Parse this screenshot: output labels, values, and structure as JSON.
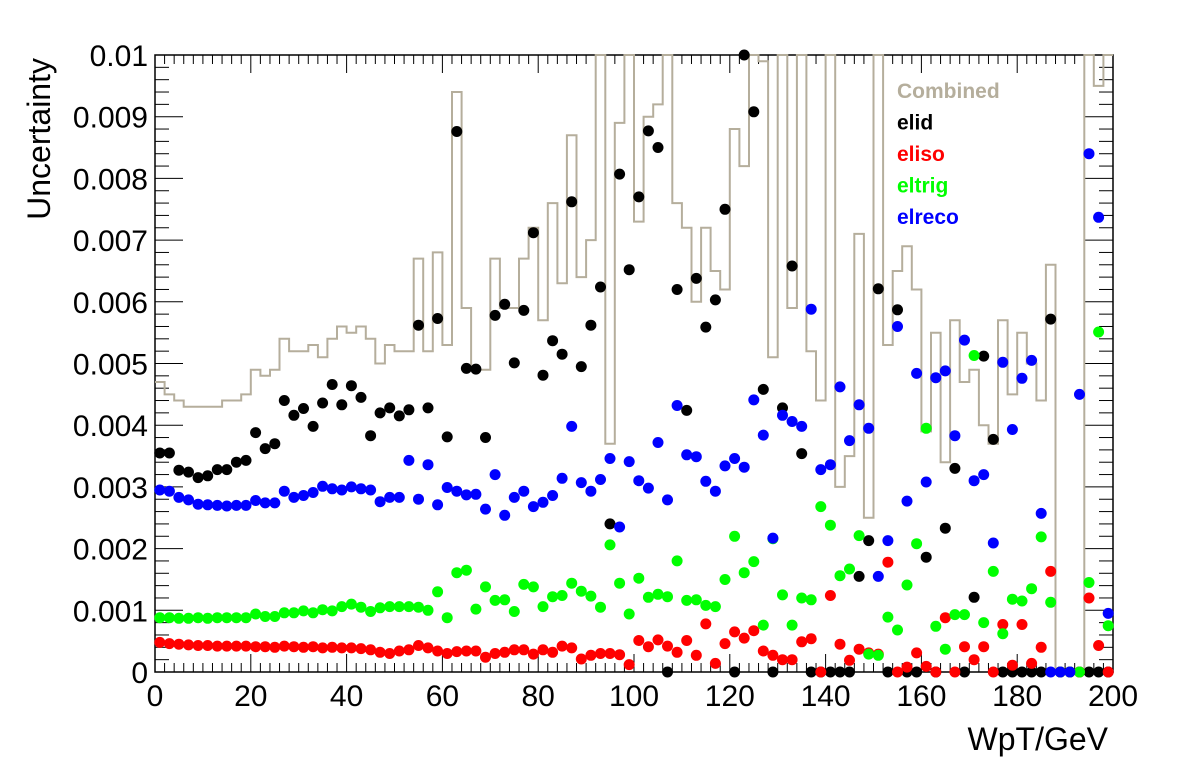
{
  "chart_data": {
    "type": "scatter",
    "xlabel": "WpT/GeV",
    "ylabel": "Uncertainty",
    "xlim": [
      0,
      200
    ],
    "ylim": [
      0,
      0.01
    ],
    "x_ticks": [
      "0",
      "20",
      "40",
      "60",
      "80",
      "100",
      "120",
      "140",
      "160",
      "180",
      "200"
    ],
    "y_ticks": [
      "0",
      "0.001",
      "0.002",
      "0.003",
      "0.004",
      "0.005",
      "0.006",
      "0.007",
      "0.008",
      "0.009",
      "0.01"
    ],
    "legend_position": "top-right",
    "x": [
      1,
      3,
      5,
      7,
      9,
      11,
      13,
      15,
      17,
      19,
      21,
      23,
      25,
      27,
      29,
      31,
      33,
      35,
      37,
      39,
      41,
      43,
      45,
      47,
      49,
      51,
      53,
      55,
      57,
      59,
      61,
      63,
      65,
      67,
      69,
      71,
      73,
      75,
      77,
      79,
      81,
      83,
      85,
      87,
      89,
      91,
      93,
      95,
      97,
      99,
      101,
      103,
      105,
      107,
      109,
      111,
      113,
      115,
      117,
      119,
      121,
      123,
      125,
      127,
      129,
      131,
      133,
      135,
      137,
      139,
      141,
      143,
      145,
      147,
      149,
      151,
      153,
      155,
      157,
      159,
      161,
      163,
      165,
      167,
      169,
      171,
      173,
      175,
      177,
      179,
      181,
      183,
      185,
      187,
      189,
      191,
      193,
      195,
      197,
      199
    ],
    "series": [
      {
        "name": "Combined",
        "style": "step",
        "color": "#b5ae9c",
        "values": [
          0.0047,
          0.0045,
          0.0044,
          0.0043,
          0.0043,
          0.0043,
          0.0043,
          0.0044,
          0.0044,
          0.0045,
          0.0049,
          0.0048,
          0.0049,
          0.0054,
          0.0052,
          0.0052,
          0.0053,
          0.0051,
          0.0054,
          0.0056,
          0.0055,
          0.0056,
          0.0054,
          0.005,
          0.0053,
          0.0052,
          0.0052,
          0.0067,
          0.0052,
          0.0068,
          0.0053,
          0.0094,
          0.0059,
          0.0049,
          0.0049,
          0.0067,
          0.0059,
          0.0059,
          0.0067,
          0.0072,
          0.0057,
          0.0076,
          0.0063,
          0.0087,
          0.0064,
          0.007,
          0.0101,
          0.0037,
          0.0089,
          0.0102,
          0.0073,
          0.009,
          0.0092,
          0.0101,
          0.0076,
          0.0072,
          0.006,
          0.0072,
          0.0065,
          0.0062,
          0.0088,
          0.0082,
          0.0101,
          0.0099,
          0.0051,
          0.0102,
          0.0059,
          0.0101,
          0.0052,
          0.0044,
          0.0101,
          0.003,
          0.0035,
          0.0071,
          0.0025,
          0.0101,
          0.0053,
          0.0065,
          0.0069,
          0.0062,
          0.0039,
          0.0055,
          0.0034,
          0.0057,
          0.0047,
          0.0049,
          0.004,
          0.0037,
          0.0057,
          0.0045,
          0.0055,
          0.005,
          0.0044,
          0.0066,
          0.0,
          0.0,
          0.0,
          0.0101,
          0.0095,
          0.0101
        ]
      },
      {
        "name": "elid",
        "color": "#000000",
        "values": [
          0.00355,
          0.00355,
          0.00327,
          0.00324,
          0.00315,
          0.00318,
          0.00328,
          0.00328,
          0.0034,
          0.00343,
          0.00388,
          0.00362,
          0.0037,
          0.0044,
          0.00416,
          0.00427,
          0.00398,
          0.00436,
          0.00466,
          0.00433,
          0.00464,
          0.00445,
          0.00383,
          0.0042,
          0.00428,
          0.00415,
          0.00425,
          0.00562,
          0.00428,
          0.00573,
          0.00381,
          0.00876,
          0.00492,
          0.00491,
          0.0038,
          0.00578,
          0.00596,
          0.00501,
          0.00586,
          0.00712,
          0.00481,
          0.00537,
          0.00515,
          0.00762,
          0.00495,
          0.00562,
          0.00624,
          0.0024,
          0.00807,
          0.00652,
          0.0077,
          0.00877,
          0.0085,
          0.0,
          0.0062,
          0.00424,
          0.00638,
          0.00559,
          0.00603,
          0.0075,
          0.0,
          0.01,
          0.00908,
          0.00458,
          0.0,
          0.00428,
          0.00658,
          0.00354,
          0.0,
          0.0,
          0.0,
          0.0,
          0.0,
          0.00155,
          0.00213,
          0.00621,
          0.0,
          0.00587,
          0.0,
          0.0,
          0.00186,
          0.0,
          0.00233,
          0.0033,
          0.0,
          0.00121,
          0.00512,
          0.00377,
          0.0,
          0.0,
          0.0,
          0.0,
          0.0,
          0.00572,
          0.0,
          0.0,
          0.0,
          0.0,
          0.0,
          0.0
        ]
      },
      {
        "name": "eliso",
        "color": "#ff0000",
        "values": [
          0.00048,
          0.00046,
          0.00045,
          0.00044,
          0.00043,
          0.00043,
          0.00042,
          0.00042,
          0.00042,
          0.00042,
          0.00041,
          0.00041,
          0.0004,
          0.00042,
          0.00041,
          0.0004,
          0.00041,
          0.00039,
          0.0004,
          0.00039,
          0.00039,
          0.00038,
          0.00036,
          0.00032,
          0.0003,
          0.00034,
          0.00036,
          0.00043,
          0.00039,
          0.00034,
          0.0003,
          0.00033,
          0.00034,
          0.00034,
          0.00024,
          0.0003,
          0.00032,
          0.00036,
          0.00036,
          0.00029,
          0.00036,
          0.00032,
          0.00042,
          0.00039,
          0.00021,
          0.00027,
          0.0003,
          0.0003,
          0.00028,
          0.00012,
          0.00051,
          0.00041,
          0.00052,
          0.00042,
          0.00032,
          0.00051,
          0.00027,
          0.00078,
          0.00014,
          0.00046,
          0.00065,
          0.00055,
          0.00067,
          0.00034,
          0.00027,
          0.0002,
          0.0002,
          0.00049,
          0.00054,
          0.0,
          0.00124,
          0.00045,
          0.00019,
          0.00037,
          0.00031,
          0.00029,
          0.00178,
          0.0,
          8e-05,
          0.00031,
          9e-05,
          0.0,
          0.00088,
          0.0,
          0.00041,
          0.0002,
          0.00041,
          0.0,
          0.00077,
          0.00011,
          0.00077,
          0.00014,
          0.0004,
          0.00163,
          0.0,
          0.0,
          0.0,
          0.0012,
          0.00043,
          0.0
        ]
      },
      {
        "name": "eltrig",
        "color": "#00ff00",
        "values": [
          0.00088,
          0.00088,
          0.00087,
          0.00087,
          0.00088,
          0.00087,
          0.00088,
          0.00088,
          0.00088,
          0.00088,
          0.00094,
          0.0009,
          0.0009,
          0.00096,
          0.00096,
          0.00099,
          0.00096,
          0.00101,
          0.00099,
          0.00106,
          0.0011,
          0.00105,
          0.00098,
          0.00104,
          0.00106,
          0.00106,
          0.00106,
          0.00105,
          0.001,
          0.0013,
          0.00088,
          0.00161,
          0.00165,
          0.00102,
          0.00138,
          0.00116,
          0.00117,
          0.00098,
          0.00142,
          0.00138,
          0.00106,
          0.00122,
          0.00124,
          0.00144,
          0.00131,
          0.00123,
          0.00105,
          0.00206,
          0.00144,
          0.00094,
          0.00152,
          0.00121,
          0.00126,
          0.00122,
          0.0018,
          0.00116,
          0.00117,
          0.00108,
          0.00106,
          0.0015,
          0.0022,
          0.00161,
          0.00179,
          0.00076,
          0.00216,
          0.00125,
          0.00076,
          0.0012,
          0.00117,
          0.00268,
          0.00238,
          0.00156,
          0.00167,
          0.00221,
          0.00029,
          0.00027,
          0.00089,
          0.00068,
          0.00141,
          0.00208,
          0.00395,
          0.00074,
          0.00037,
          0.00093,
          0.00093,
          0.00513,
          0.0008,
          0.00163,
          0.00062,
          0.00118,
          0.00115,
          0.00135,
          0.00219,
          0.00113,
          0.0,
          0.0,
          0.0,
          0.00145,
          0.00551,
          0.00075
        ]
      },
      {
        "name": "elreco",
        "color": "#0000ff",
        "values": [
          0.00295,
          0.00293,
          0.00283,
          0.00279,
          0.00272,
          0.00271,
          0.0027,
          0.00269,
          0.0027,
          0.0027,
          0.00278,
          0.00274,
          0.00274,
          0.00293,
          0.00283,
          0.00286,
          0.00291,
          0.00301,
          0.00297,
          0.00295,
          0.003,
          0.00297,
          0.00295,
          0.00276,
          0.00283,
          0.00283,
          0.00343,
          0.0028,
          0.00336,
          0.00271,
          0.00299,
          0.00293,
          0.00287,
          0.00288,
          0.00264,
          0.0032,
          0.00254,
          0.00283,
          0.00293,
          0.00268,
          0.00275,
          0.00286,
          0.00314,
          0.00398,
          0.00307,
          0.00293,
          0.00312,
          0.00346,
          0.00235,
          0.00341,
          0.0031,
          0.00298,
          0.00372,
          0.00279,
          0.00432,
          0.00352,
          0.00349,
          0.00309,
          0.00293,
          0.00334,
          0.00346,
          0.00332,
          0.00441,
          0.00384,
          0.00217,
          0.00416,
          0.00406,
          0.00398,
          0.00588,
          0.00328,
          0.00336,
          0.00462,
          0.00375,
          0.00433,
          0.00395,
          0.00155,
          0.00213,
          0.0056,
          0.00277,
          0.00484,
          0.00308,
          0.00477,
          0.00488,
          0.00383,
          0.00538,
          0.0031,
          0.0032,
          0.00209,
          0.00502,
          0.00393,
          0.00476,
          0.00505,
          0.00257,
          0.0,
          0.0,
          0.0,
          0.0045,
          0.0084,
          0.00737,
          0.00095
        ]
      }
    ]
  }
}
